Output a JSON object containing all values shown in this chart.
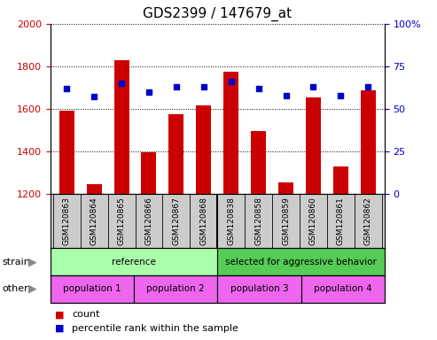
{
  "title": "GDS2399 / 147679_at",
  "samples": [
    "GSM120863",
    "GSM120864",
    "GSM120865",
    "GSM120866",
    "GSM120867",
    "GSM120868",
    "GSM120838",
    "GSM120858",
    "GSM120859",
    "GSM120860",
    "GSM120861",
    "GSM120862"
  ],
  "counts": [
    1590,
    1245,
    1830,
    1395,
    1575,
    1615,
    1775,
    1495,
    1255,
    1655,
    1330,
    1685
  ],
  "percentile_ranks": [
    62,
    57,
    65,
    60,
    63,
    63,
    66,
    62,
    58,
    63,
    58,
    63
  ],
  "bar_color": "#cc0000",
  "dot_color": "#0000cc",
  "ylim_left": [
    1200,
    2000
  ],
  "ylim_right": [
    0,
    100
  ],
  "yticks_left": [
    1200,
    1400,
    1600,
    1800,
    2000
  ],
  "yticks_right": [
    0,
    25,
    50,
    75,
    100
  ],
  "strain_groups": [
    {
      "label": "reference",
      "start": 0,
      "end": 6,
      "color": "#aaffaa"
    },
    {
      "label": "selected for aggressive behavior",
      "start": 6,
      "end": 12,
      "color": "#55cc55"
    }
  ],
  "other_groups": [
    {
      "label": "population 1",
      "start": 0,
      "end": 3,
      "color": "#ee66ee"
    },
    {
      "label": "population 2",
      "start": 3,
      "end": 6,
      "color": "#ee66ee"
    },
    {
      "label": "population 3",
      "start": 6,
      "end": 9,
      "color": "#ee66ee"
    },
    {
      "label": "population 4",
      "start": 9,
      "end": 12,
      "color": "#ee66ee"
    }
  ],
  "strain_label": "strain",
  "other_label": "other",
  "legend_count_label": "count",
  "legend_pct_label": "percentile rank within the sample",
  "bar_width": 0.55,
  "tick_label_color_left": "#cc0000",
  "tick_label_color_right": "#0000cc",
  "title_fontsize": 11,
  "sample_bg_color": "#cccccc",
  "n_samples": 12,
  "separator_at": 6
}
